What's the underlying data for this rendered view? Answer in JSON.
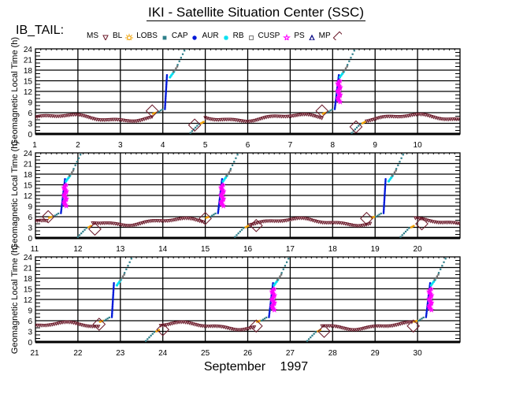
{
  "header": {
    "title": "IKI - Satellite Situation Center (SSC)",
    "satellite_label": "IB_TAIL:"
  },
  "legend": [
    {
      "label": "MS",
      "symbol": "triangle-down",
      "color": "#6b1a2a"
    },
    {
      "label": "BL",
      "symbol": "sun",
      "color": "#f0a000"
    },
    {
      "label": "LOBS",
      "symbol": "square-filled",
      "color": "#2e7f8a"
    },
    {
      "label": "CAP",
      "symbol": "dot",
      "color": "#0018d8"
    },
    {
      "label": "AUR",
      "symbol": "asterisk",
      "color": "#00e0f0"
    },
    {
      "label": "RB",
      "symbol": "square-open",
      "color": "#707070"
    },
    {
      "label": "CUSP",
      "symbol": "star",
      "color": "#ff00ff"
    },
    {
      "label": "PS",
      "symbol": "triangle-up",
      "color": "#000080"
    },
    {
      "label": "MP",
      "symbol": "diamond",
      "color": "#6b1a2a"
    }
  ],
  "chart_data": {
    "type": "scatter",
    "title": "IKI - Satellite Situation Center (SSC)",
    "xlabel": "September    1997",
    "ylabel": "Geomagnetic Local Time (h)",
    "ylim": [
      0,
      24
    ],
    "yticks": [
      0,
      3,
      6,
      9,
      12,
      15,
      18,
      21,
      24
    ],
    "grid": true,
    "panels": [
      {
        "xlim": [
          1,
          11
        ],
        "tick_labels": [
          "1",
          "2",
          "3",
          "4",
          "5",
          "6",
          "7",
          "8",
          "9",
          "10"
        ],
        "mp_crossings": [
          {
            "day": 3.75,
            "mlt": 6.5
          },
          {
            "day": 4.75,
            "mlt": 2.5
          },
          {
            "day": 7.75,
            "mlt": 6.5
          },
          {
            "day": 8.55,
            "mlt": 2.0
          }
        ],
        "outbound_passes": [
          {
            "start_day": 3.85,
            "cusp": false
          },
          {
            "start_day": 7.85,
            "cusp": true
          }
        ],
        "inbound_passes": [
          {
            "start_day": 4.65
          },
          {
            "start_day": 8.45
          }
        ]
      },
      {
        "xlim": [
          11,
          21
        ],
        "tick_labels": [
          "11",
          "12",
          "13",
          "14",
          "15",
          "16",
          "17",
          "18",
          "19",
          "20"
        ],
        "mp_crossings": [
          {
            "day": 11.3,
            "mlt": 6.0
          },
          {
            "day": 12.4,
            "mlt": 2.5
          },
          {
            "day": 15.0,
            "mlt": 5.5
          },
          {
            "day": 16.2,
            "mlt": 3.5
          },
          {
            "day": 18.8,
            "mlt": 5.5
          },
          {
            "day": 20.1,
            "mlt": 4.0
          }
        ],
        "outbound_passes": [
          {
            "start_day": 11.4,
            "cusp": true
          },
          {
            "start_day": 15.1,
            "cusp": true
          },
          {
            "start_day": 19.0,
            "cusp": false
          }
        ],
        "inbound_passes": [
          {
            "start_day": 12.0
          },
          {
            "start_day": 15.7
          },
          {
            "start_day": 19.6
          }
        ]
      },
      {
        "xlim": [
          21,
          31
        ],
        "tick_labels": [
          "21",
          "22",
          "23",
          "24",
          "25",
          "26",
          "27",
          "28",
          "29",
          "30"
        ],
        "mp_crossings": [
          {
            "day": 22.5,
            "mlt": 5.0
          },
          {
            "day": 24.0,
            "mlt": 3.5
          },
          {
            "day": 26.2,
            "mlt": 4.5
          },
          {
            "day": 27.8,
            "mlt": 3.0
          },
          {
            "day": 29.9,
            "mlt": 4.5
          }
        ],
        "outbound_passes": [
          {
            "start_day": 22.6,
            "cusp": false
          },
          {
            "start_day": 26.3,
            "cusp": true
          },
          {
            "start_day": 30.0,
            "cusp": true
          }
        ],
        "inbound_passes": [
          {
            "start_day": 23.6
          },
          {
            "start_day": 27.4
          }
        ]
      }
    ],
    "series": [
      {
        "name": "MS",
        "color": "#6b1a2a",
        "description": "magnetosheath, MLT ~3-6 h oscillating baseline"
      },
      {
        "name": "BL",
        "color": "#f0a000"
      },
      {
        "name": "LOBS",
        "color": "#2e7f8a"
      },
      {
        "name": "CAP",
        "color": "#0018d8"
      },
      {
        "name": "AUR",
        "color": "#00e0f0"
      },
      {
        "name": "RB",
        "color": "#707070"
      },
      {
        "name": "CUSP",
        "color": "#ff00ff"
      },
      {
        "name": "PS",
        "color": "#000080"
      },
      {
        "name": "MP",
        "color": "#6b1a2a"
      }
    ]
  }
}
